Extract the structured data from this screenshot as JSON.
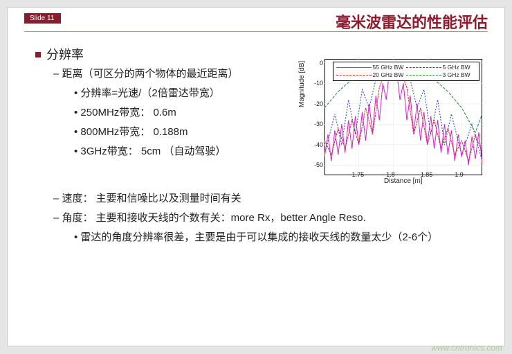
{
  "slide_number": "Slide 11",
  "title": "毫米波雷达的性能评估",
  "main_bullet": "分辨率",
  "dist": {
    "heading": "距离（可区分的两个物体的最近距离）",
    "sub1": "分辨率=光速/（2倍雷达带宽）",
    "sub2": "250MHz带宽：  0.6m",
    "sub3": "800MHz带宽：  0.188m",
    "sub4": "3GHz带宽：  5cm  （自动驾驶）"
  },
  "speed": "速度：  主要和信噪比以及测量时间有关",
  "angle": "角度：  主要和接收天线的个数有关：more Rx，better Angle Reso.",
  "angle_sub": "雷达的角度分辨率很差，主要是由于可以集成的接收天线的数量太少（2-6个）",
  "chart": {
    "ylabel": "Magnitude [dB]",
    "xlabel": "Distance [m]",
    "legend": {
      "a": "55 GHz BW",
      "b": "5 GHz BW",
      "c": "20 GHz BW",
      "d": "3 GHz BW"
    },
    "yticks": [
      "0",
      "-10",
      "-20",
      "-30",
      "-40",
      "-50"
    ],
    "xticks": [
      "1.75",
      "1.8",
      "1.85",
      "1.9"
    ],
    "xlim": [
      1.7,
      1.93
    ],
    "ylim": [
      -55,
      2
    ],
    "colors": {
      "a": "#d421c9",
      "b": "#1f3fc9",
      "c": "#d6291f",
      "d": "#1a8f2a"
    },
    "series": {
      "b_5ghz": [
        [
          1.7,
          -45
        ],
        [
          1.715,
          -25
        ],
        [
          1.725,
          -40
        ],
        [
          1.735,
          -18
        ],
        [
          1.745,
          -35
        ],
        [
          1.755,
          -13
        ],
        [
          1.765,
          -22
        ],
        [
          1.775,
          -8
        ],
        [
          1.785,
          -4
        ],
        [
          1.8,
          0
        ],
        [
          1.815,
          -4
        ],
        [
          1.825,
          -8
        ],
        [
          1.835,
          -22
        ],
        [
          1.845,
          -13
        ],
        [
          1.855,
          -35
        ],
        [
          1.865,
          -18
        ],
        [
          1.875,
          -40
        ],
        [
          1.885,
          -25
        ],
        [
          1.9,
          -45
        ],
        [
          1.915,
          -30
        ],
        [
          1.93,
          -48
        ]
      ],
      "d_3ghz": [
        [
          1.7,
          -22
        ],
        [
          1.72,
          -14
        ],
        [
          1.74,
          -8
        ],
        [
          1.76,
          -4
        ],
        [
          1.78,
          -1
        ],
        [
          1.8,
          0
        ],
        [
          1.82,
          -1
        ],
        [
          1.84,
          -4
        ],
        [
          1.86,
          -8
        ],
        [
          1.88,
          -14
        ],
        [
          1.9,
          -22
        ],
        [
          1.92,
          -34
        ],
        [
          1.93,
          -25
        ]
      ],
      "c_20ghz": [
        [
          1.7,
          -38
        ],
        [
          1.71,
          -45
        ],
        [
          1.72,
          -32
        ],
        [
          1.73,
          -42
        ],
        [
          1.74,
          -28
        ],
        [
          1.75,
          -40
        ],
        [
          1.76,
          -22
        ],
        [
          1.77,
          -35
        ],
        [
          1.78,
          -12
        ],
        [
          1.79,
          -3
        ],
        [
          1.8,
          0
        ],
        [
          1.81,
          -3
        ],
        [
          1.82,
          -12
        ],
        [
          1.83,
          -35
        ],
        [
          1.84,
          -22
        ],
        [
          1.85,
          -40
        ],
        [
          1.86,
          -28
        ],
        [
          1.87,
          -42
        ],
        [
          1.88,
          -32
        ],
        [
          1.89,
          -45
        ],
        [
          1.9,
          -38
        ],
        [
          1.91,
          -48
        ],
        [
          1.92,
          -35
        ],
        [
          1.93,
          -44
        ]
      ],
      "a_55ghz": [
        [
          1.7,
          -46
        ],
        [
          1.705,
          -35
        ],
        [
          1.71,
          -48
        ],
        [
          1.715,
          -33
        ],
        [
          1.72,
          -45
        ],
        [
          1.725,
          -30
        ],
        [
          1.73,
          -44
        ],
        [
          1.735,
          -28
        ],
        [
          1.74,
          -42
        ],
        [
          1.745,
          -26
        ],
        [
          1.75,
          -40
        ],
        [
          1.755,
          -24
        ],
        [
          1.76,
          -38
        ],
        [
          1.765,
          -20
        ],
        [
          1.77,
          -34
        ],
        [
          1.775,
          -16
        ],
        [
          1.78,
          -28
        ],
        [
          1.785,
          -10
        ],
        [
          1.79,
          -18
        ],
        [
          1.795,
          -3
        ],
        [
          1.8,
          0
        ],
        [
          1.805,
          -3
        ],
        [
          1.81,
          -18
        ],
        [
          1.815,
          -10
        ],
        [
          1.82,
          -28
        ],
        [
          1.825,
          -16
        ],
        [
          1.83,
          -34
        ],
        [
          1.835,
          -20
        ],
        [
          1.84,
          -38
        ],
        [
          1.845,
          -24
        ],
        [
          1.85,
          -40
        ],
        [
          1.855,
          -26
        ],
        [
          1.86,
          -42
        ],
        [
          1.865,
          -28
        ],
        [
          1.87,
          -44
        ],
        [
          1.875,
          -30
        ],
        [
          1.88,
          -45
        ],
        [
          1.885,
          -33
        ],
        [
          1.89,
          -48
        ],
        [
          1.895,
          -35
        ],
        [
          1.9,
          -46
        ],
        [
          1.905,
          -38
        ],
        [
          1.91,
          -50
        ],
        [
          1.915,
          -36
        ],
        [
          1.92,
          -47
        ],
        [
          1.925,
          -34
        ],
        [
          1.93,
          -49
        ]
      ]
    }
  },
  "watermark": "www.cntronics.com"
}
